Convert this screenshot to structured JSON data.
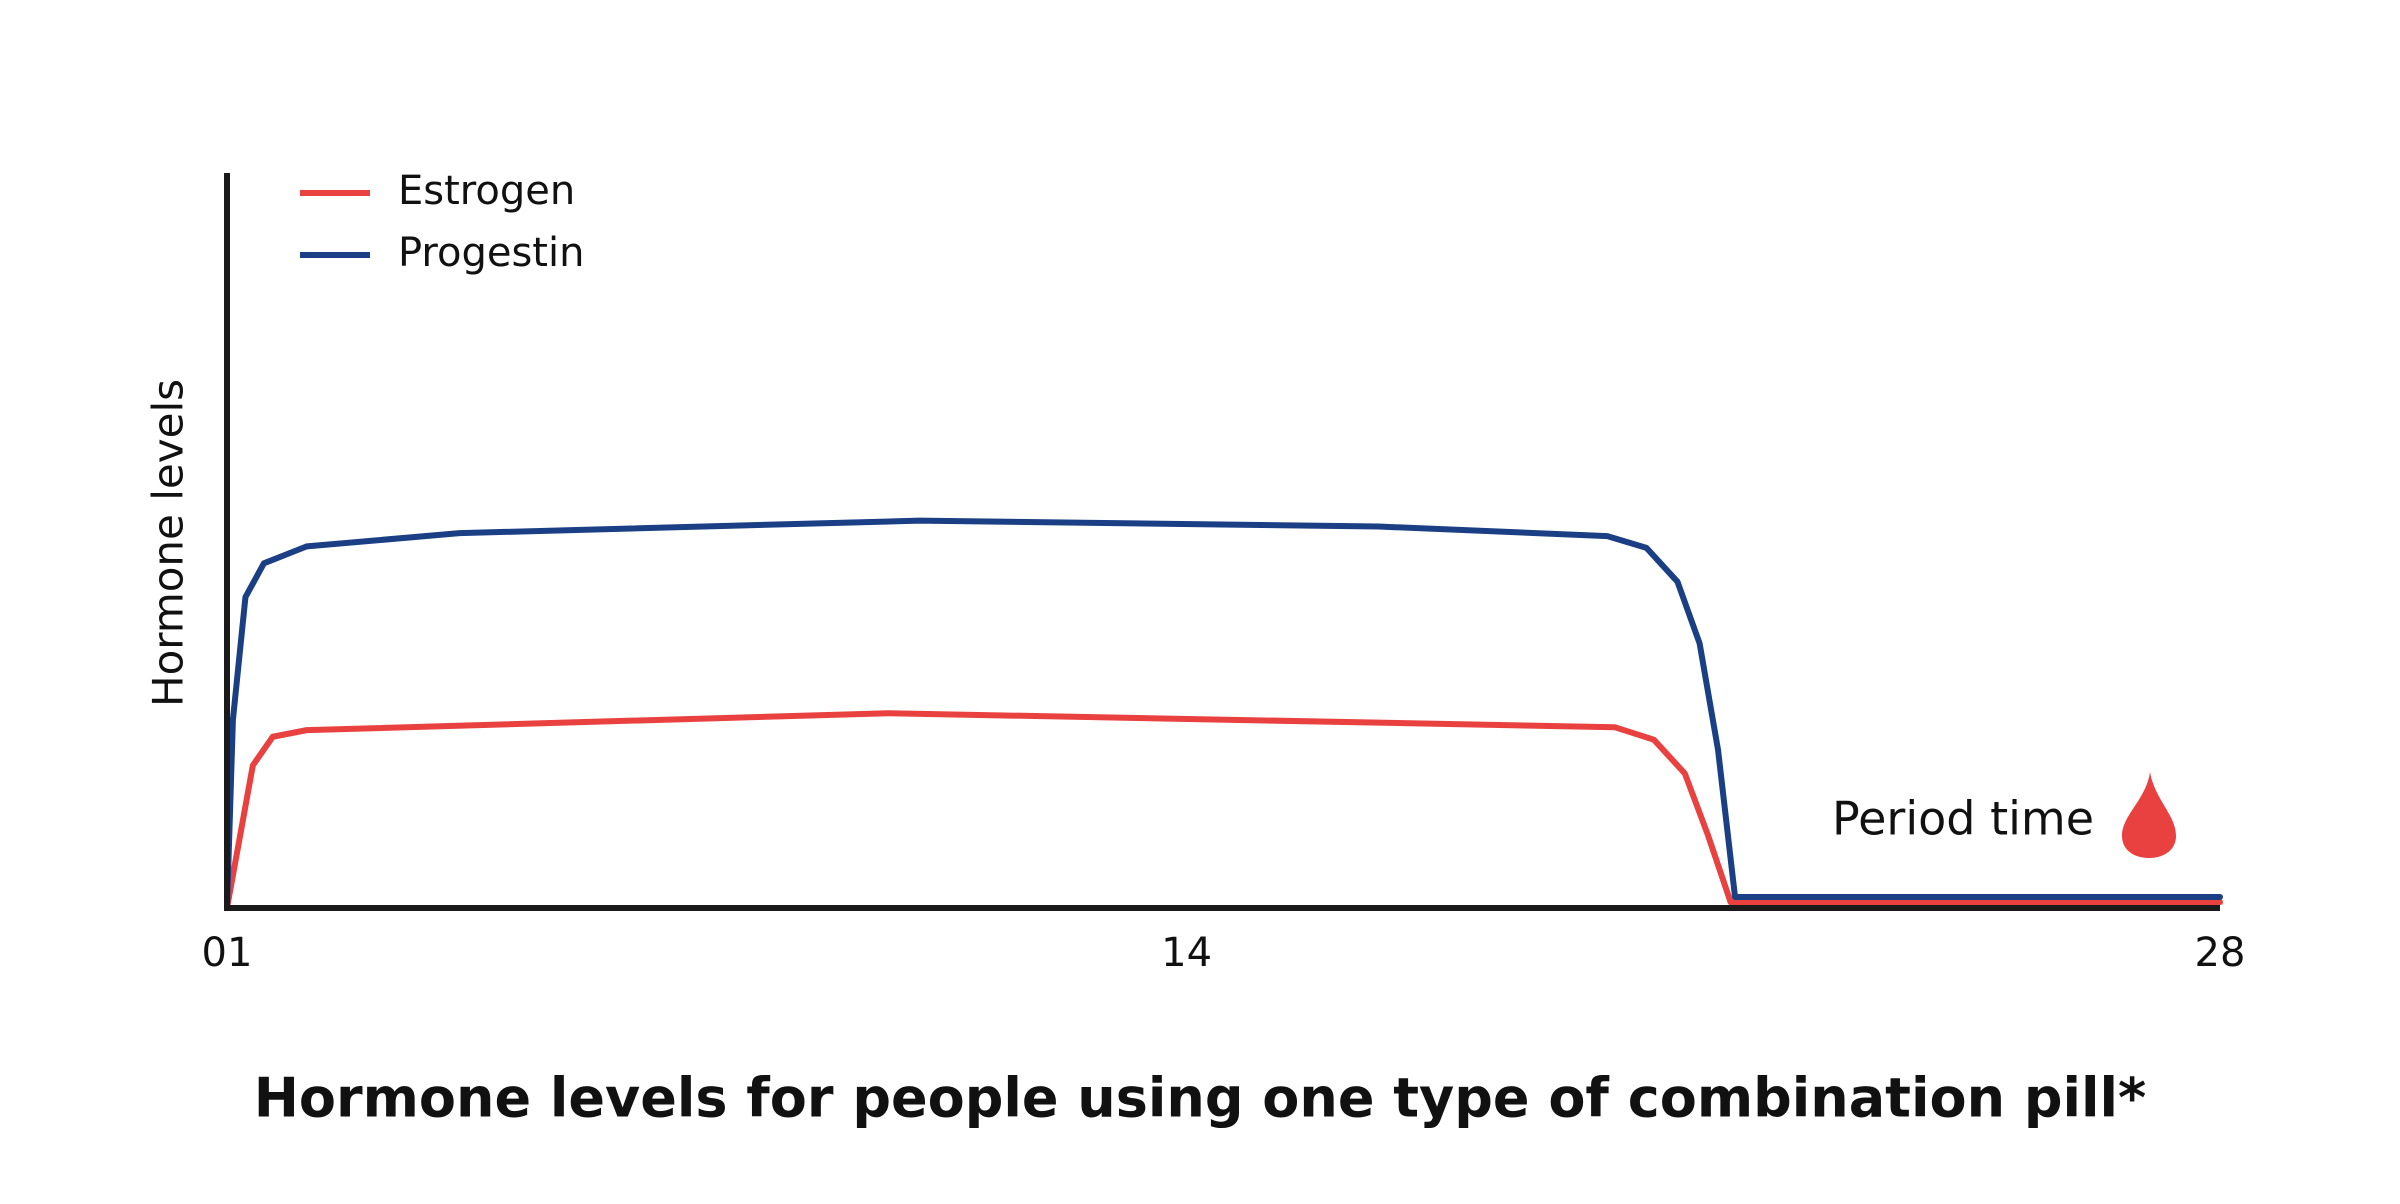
{
  "chart_data": {
    "type": "line",
    "title": "Hormone levels for people using one type of combination pill*",
    "ylabel": "Hormone levels",
    "annotation": "Period time",
    "xlim": [
      1,
      28
    ],
    "ylim": [
      0,
      100
    ],
    "xticks": [
      {
        "value": 1,
        "label": "01"
      },
      14,
      28
    ],
    "grid": false,
    "legend": "top-left",
    "series": [
      {
        "name": "Estrogen",
        "color": "#e8413f",
        "x": [
          1,
          1.35,
          1.62,
          2.08,
          9.96,
          19.8,
          20.33,
          20.75,
          21.06,
          21.37,
          28
        ],
        "values": [
          0,
          19.4,
          23.3,
          24.2,
          26.5,
          24.6,
          22.9,
          18.3,
          10.0,
          0.8,
          0.8
        ]
      },
      {
        "name": "Progestin",
        "color": "#1b3f84",
        "x": [
          1,
          1.08,
          1.25,
          1.5,
          2.08,
          4.15,
          10.38,
          16.6,
          19.7,
          20.23,
          20.65,
          20.95,
          21.2,
          21.43,
          28
        ],
        "values": [
          0,
          25.6,
          42.3,
          46.9,
          49.2,
          51.0,
          52.7,
          51.9,
          50.6,
          49.0,
          44.4,
          36.0,
          21.5,
          1.5,
          1.5
        ]
      }
    ]
  }
}
